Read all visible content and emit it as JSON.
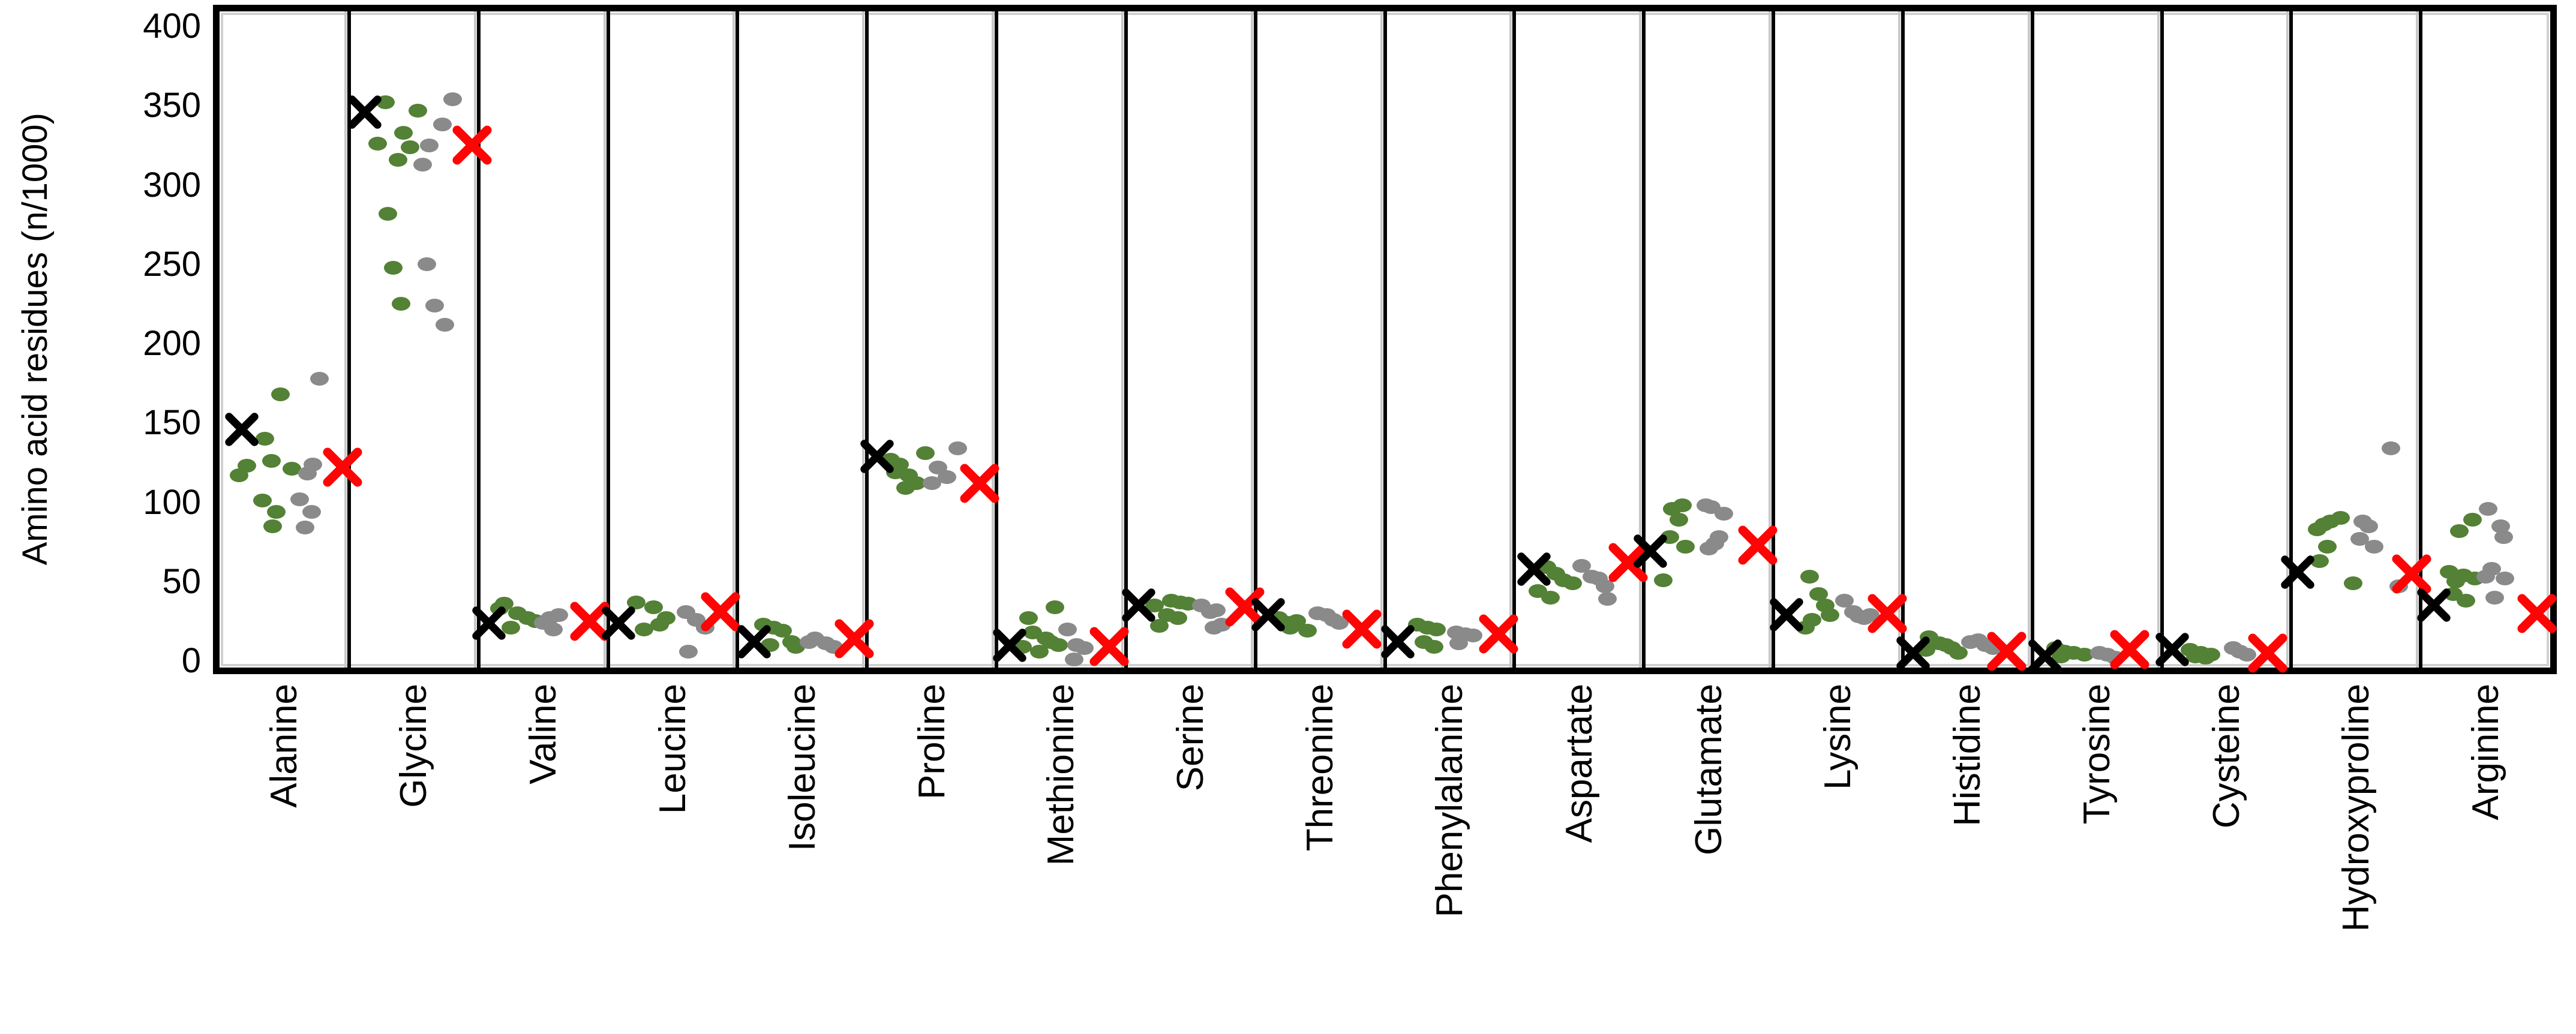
{
  "chart_data": {
    "type": "scatter",
    "title": "",
    "xlabel": "",
    "ylabel": "Amino acid residues (n/1000)",
    "ylim": [
      0,
      400
    ],
    "yticks": [
      0,
      50,
      100,
      150,
      200,
      250,
      300,
      350,
      400
    ],
    "grid": "none",
    "legend": "none",
    "layout": {
      "category_separators": true,
      "x_labels_rotated_degrees": 90,
      "x_labels_reading": "bottom-to-top"
    },
    "colors": {
      "green_dot": "#538135",
      "gray_dot": "#8a8a8a",
      "black_x": "#000000",
      "red_x": "#ff0404",
      "separator": "#000000",
      "plot_border": "#000000",
      "inner_frame": "#d0d0d0"
    },
    "series_info": [
      {
        "key": "green",
        "marker": "dot",
        "color": "#538135",
        "name": "green-dot-series"
      },
      {
        "key": "gray",
        "marker": "dot",
        "color": "#8a8a8a",
        "name": "gray-dot-series"
      },
      {
        "key": "black_x",
        "marker": "x",
        "color": "#000000",
        "name": "black-x-marker"
      },
      {
        "key": "red_x",
        "marker": "x",
        "color": "#ff0404",
        "name": "red-x-marker"
      }
    ],
    "categories": [
      {
        "name": "Alanine",
        "black_x": 146,
        "black_x_f": 0.17,
        "red_x": 122,
        "red_x_f": 0.95,
        "green": [
          [
            0.47,
            168
          ],
          [
            0.35,
            140
          ],
          [
            0.4,
            126
          ],
          [
            0.21,
            123
          ],
          [
            0.56,
            121
          ],
          [
            0.15,
            117
          ],
          [
            0.33,
            101
          ],
          [
            0.44,
            94
          ],
          [
            0.41,
            85
          ]
        ],
        "gray": [
          [
            0.77,
            178
          ],
          [
            0.72,
            124
          ],
          [
            0.68,
            118
          ],
          [
            0.62,
            102
          ],
          [
            0.71,
            94
          ],
          [
            0.66,
            84
          ]
        ]
      },
      {
        "name": "Glycine",
        "black_x": 346,
        "black_x_f": 0.12,
        "red_x": 325,
        "red_x_f": 0.95,
        "green": [
          [
            0.28,
            352
          ],
          [
            0.53,
            347
          ],
          [
            0.42,
            333
          ],
          [
            0.22,
            326
          ],
          [
            0.47,
            324
          ],
          [
            0.38,
            316
          ],
          [
            0.3,
            282
          ],
          [
            0.34,
            248
          ],
          [
            0.4,
            225
          ]
        ],
        "gray": [
          [
            0.8,
            354
          ],
          [
            0.72,
            338
          ],
          [
            0.62,
            325
          ],
          [
            0.57,
            313
          ],
          [
            0.6,
            250
          ],
          [
            0.66,
            224
          ],
          [
            0.74,
            212
          ]
        ]
      },
      {
        "name": "Valine",
        "black_x": 24,
        "black_x_f": 0.08,
        "red_x": 25,
        "red_x_f": 0.86,
        "green": [
          [
            0.2,
            36
          ],
          [
            0.16,
            33
          ],
          [
            0.3,
            30
          ],
          [
            0.38,
            27
          ],
          [
            0.44,
            25
          ],
          [
            0.25,
            21
          ]
        ],
        "gray": [
          [
            0.62,
            29
          ],
          [
            0.55,
            27
          ],
          [
            0.5,
            24
          ],
          [
            0.58,
            20
          ]
        ]
      },
      {
        "name": "Leucine",
        "black_x": 24,
        "black_x_f": 0.08,
        "red_x": 31,
        "red_x_f": 0.87,
        "green": [
          [
            0.22,
            37
          ],
          [
            0.35,
            34
          ],
          [
            0.45,
            27
          ],
          [
            0.4,
            23
          ],
          [
            0.28,
            20
          ]
        ],
        "gray": [
          [
            0.6,
            31
          ],
          [
            0.68,
            26
          ],
          [
            0.75,
            21
          ],
          [
            0.62,
            6
          ]
        ]
      },
      {
        "name": "Isoleucine",
        "black_x": 12,
        "black_x_f": 0.13,
        "red_x": 14,
        "red_x_f": 0.9,
        "green": [
          [
            0.2,
            23
          ],
          [
            0.28,
            21
          ],
          [
            0.35,
            19
          ],
          [
            0.42,
            12
          ],
          [
            0.25,
            10
          ],
          [
            0.45,
            9
          ]
        ],
        "gray": [
          [
            0.6,
            14
          ],
          [
            0.55,
            12
          ],
          [
            0.68,
            11
          ],
          [
            0.74,
            9
          ]
        ]
      },
      {
        "name": "Proline",
        "black_x": 129,
        "black_x_f": 0.08,
        "red_x": 112,
        "red_x_f": 0.87,
        "green": [
          [
            0.45,
            131
          ],
          [
            0.18,
            127
          ],
          [
            0.25,
            124
          ],
          [
            0.22,
            119
          ],
          [
            0.32,
            117
          ],
          [
            0.38,
            112
          ],
          [
            0.3,
            109
          ]
        ],
        "gray": [
          [
            0.7,
            134
          ],
          [
            0.55,
            122
          ],
          [
            0.62,
            116
          ],
          [
            0.5,
            112
          ]
        ]
      },
      {
        "name": "Methionine",
        "black_x": 10,
        "black_x_f": 0.1,
        "red_x": 9,
        "red_x_f": 0.87,
        "green": [
          [
            0.45,
            34
          ],
          [
            0.25,
            27
          ],
          [
            0.28,
            18
          ],
          [
            0.38,
            14
          ],
          [
            0.42,
            12
          ],
          [
            0.48,
            10
          ],
          [
            0.2,
            9
          ],
          [
            0.33,
            6
          ]
        ],
        "gray": [
          [
            0.55,
            20
          ],
          [
            0.62,
            10
          ],
          [
            0.68,
            8
          ],
          [
            0.6,
            1
          ]
        ]
      },
      {
        "name": "Serine",
        "black_x": 35,
        "black_x_f": 0.1,
        "red_x": 34,
        "red_x_f": 0.92,
        "green": [
          [
            0.35,
            38
          ],
          [
            0.42,
            37
          ],
          [
            0.48,
            36
          ],
          [
            0.22,
            35
          ],
          [
            0.32,
            29
          ],
          [
            0.4,
            27
          ],
          [
            0.26,
            22
          ]
        ],
        "gray": [
          [
            0.58,
            35
          ],
          [
            0.7,
            32
          ],
          [
            0.65,
            31
          ],
          [
            0.74,
            23
          ],
          [
            0.68,
            21
          ]
        ]
      },
      {
        "name": "Threonine",
        "black_x": 29,
        "black_x_f": 0.1,
        "red_x": 20,
        "red_x_f": 0.82,
        "green": [
          [
            0.18,
            27
          ],
          [
            0.32,
            25
          ],
          [
            0.25,
            24
          ],
          [
            0.27,
            21
          ],
          [
            0.4,
            19
          ]
        ],
        "gray": [
          [
            0.48,
            30
          ],
          [
            0.55,
            29
          ],
          [
            0.6,
            26
          ],
          [
            0.65,
            24
          ]
        ]
      },
      {
        "name": "Phenylalanine",
        "black_x": 12,
        "black_x_f": 0.1,
        "red_x": 17,
        "red_x_f": 0.88,
        "green": [
          [
            0.25,
            23
          ],
          [
            0.33,
            21
          ],
          [
            0.4,
            20
          ],
          [
            0.3,
            12
          ],
          [
            0.38,
            9
          ]
        ],
        "gray": [
          [
            0.55,
            18
          ],
          [
            0.62,
            17
          ],
          [
            0.68,
            16
          ],
          [
            0.57,
            11
          ]
        ]
      },
      {
        "name": "Aspartate",
        "black_x": 58,
        "black_x_f": 0.15,
        "red_x": 62,
        "red_x_f": 0.88,
        "green": [
          [
            0.25,
            59
          ],
          [
            0.32,
            55
          ],
          [
            0.38,
            51
          ],
          [
            0.45,
            49
          ],
          [
            0.18,
            44
          ],
          [
            0.28,
            40
          ]
        ],
        "gray": [
          [
            0.52,
            60
          ],
          [
            0.6,
            53
          ],
          [
            0.65,
            52
          ],
          [
            0.7,
            47
          ],
          [
            0.72,
            39
          ]
        ]
      },
      {
        "name": "Glutamate",
        "black_x": 69,
        "black_x_f": 0.05,
        "red_x": 73,
        "red_x_f": 0.88,
        "green": [
          [
            0.3,
            98
          ],
          [
            0.22,
            96
          ],
          [
            0.27,
            89
          ],
          [
            0.2,
            78
          ],
          [
            0.32,
            72
          ],
          [
            0.15,
            51
          ]
        ],
        "gray": [
          [
            0.48,
            98
          ],
          [
            0.52,
            97
          ],
          [
            0.62,
            93
          ],
          [
            0.58,
            78
          ],
          [
            0.55,
            74
          ],
          [
            0.5,
            71
          ]
        ]
      },
      {
        "name": "Lysine",
        "black_x": 29,
        "black_x_f": 0.1,
        "red_x": 30,
        "red_x_f": 0.88,
        "green": [
          [
            0.28,
            53
          ],
          [
            0.35,
            42
          ],
          [
            0.4,
            35
          ],
          [
            0.44,
            29
          ],
          [
            0.3,
            26
          ],
          [
            0.25,
            21
          ]
        ],
        "gray": [
          [
            0.55,
            38
          ],
          [
            0.62,
            31
          ],
          [
            0.75,
            29
          ],
          [
            0.66,
            28
          ],
          [
            0.7,
            27
          ]
        ]
      },
      {
        "name": "Histidine",
        "black_x": 5,
        "black_x_f": 0.08,
        "red_x": 6,
        "red_x_f": 0.8,
        "green": [
          [
            0.2,
            15
          ],
          [
            0.28,
            11
          ],
          [
            0.33,
            10
          ],
          [
            0.38,
            8
          ],
          [
            0.18,
            7
          ],
          [
            0.43,
            5
          ]
        ],
        "gray": [
          [
            0.58,
            13
          ],
          [
            0.52,
            12
          ],
          [
            0.64,
            10
          ],
          [
            0.7,
            8
          ]
        ]
      },
      {
        "name": "Tyrosine",
        "black_x": 3,
        "black_x_f": 0.1,
        "red_x": 7,
        "red_x_f": 0.75,
        "green": [
          [
            0.18,
            8
          ],
          [
            0.25,
            6
          ],
          [
            0.32,
            5
          ],
          [
            0.4,
            4
          ],
          [
            0.22,
            3
          ]
        ],
        "gray": [
          [
            0.52,
            5
          ],
          [
            0.58,
            4
          ],
          [
            0.64,
            2
          ]
        ]
      },
      {
        "name": "Cysteine",
        "black_x": 7,
        "black_x_f": 0.08,
        "red_x": 5,
        "red_x_f": 0.82,
        "green": [
          [
            0.22,
            7
          ],
          [
            0.3,
            5
          ],
          [
            0.38,
            4
          ],
          [
            0.26,
            3
          ],
          [
            0.34,
            2
          ]
        ],
        "gray": [
          [
            0.55,
            8
          ],
          [
            0.6,
            6
          ],
          [
            0.66,
            4
          ]
        ]
      },
      {
        "name": "Hydroxyproline",
        "black_x": 56,
        "black_x_f": 0.05,
        "red_x": 55,
        "red_x_f": 0.93,
        "green": [
          [
            0.38,
            90
          ],
          [
            0.3,
            88
          ],
          [
            0.25,
            86
          ],
          [
            0.2,
            83
          ],
          [
            0.28,
            72
          ],
          [
            0.22,
            63
          ],
          [
            0.48,
            49
          ]
        ],
        "gray": [
          [
            0.77,
            134
          ],
          [
            0.55,
            88
          ],
          [
            0.6,
            85
          ],
          [
            0.53,
            77
          ],
          [
            0.64,
            72
          ],
          [
            0.83,
            47
          ]
        ]
      },
      {
        "name": "Arginine",
        "black_x": 35,
        "black_x_f": 0.1,
        "red_x": 30,
        "red_x_f": 0.9,
        "green": [
          [
            0.4,
            89
          ],
          [
            0.3,
            82
          ],
          [
            0.22,
            56
          ],
          [
            0.33,
            54
          ],
          [
            0.42,
            52
          ],
          [
            0.27,
            50
          ],
          [
            0.25,
            42
          ],
          [
            0.35,
            38
          ]
        ],
        "gray": [
          [
            0.52,
            96
          ],
          [
            0.62,
            85
          ],
          [
            0.64,
            78
          ],
          [
            0.55,
            58
          ],
          [
            0.5,
            53
          ],
          [
            0.65,
            52
          ],
          [
            0.57,
            40
          ]
        ]
      }
    ]
  }
}
